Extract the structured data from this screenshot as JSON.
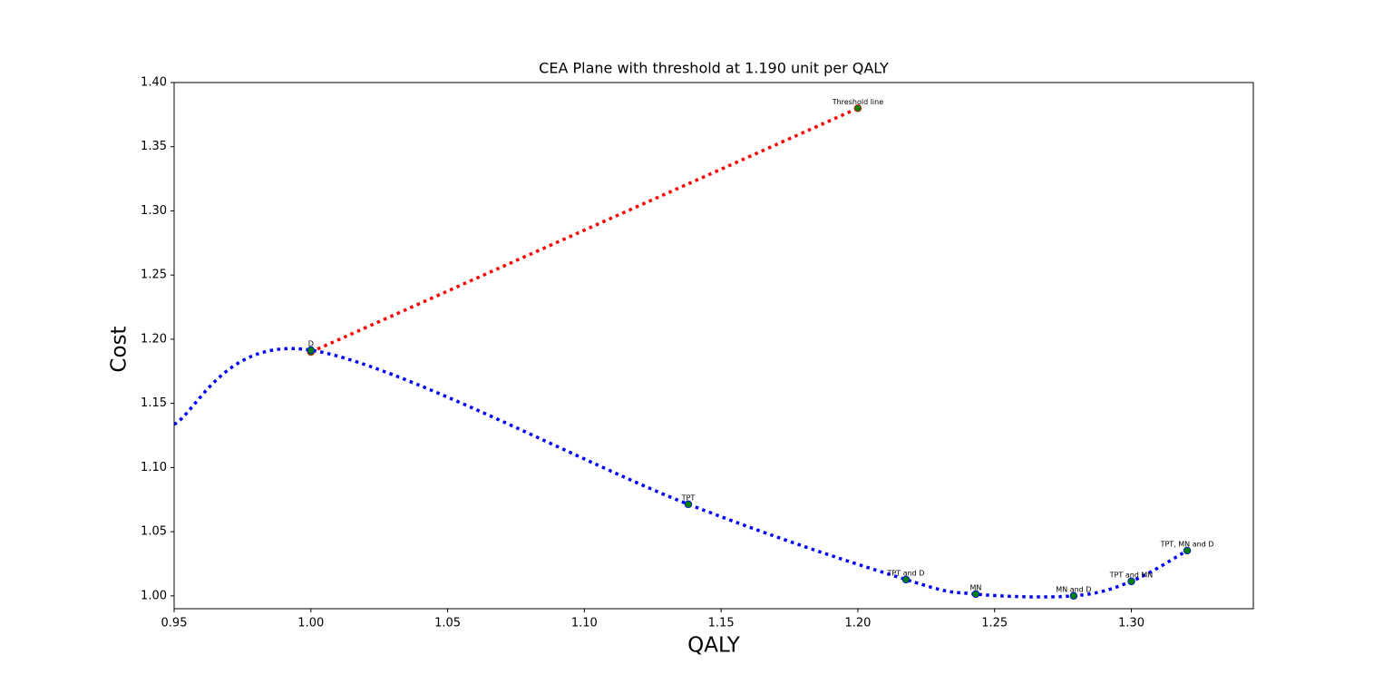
{
  "chart_data": {
    "type": "line",
    "title": "CEA Plane with threshold at 1.190 unit per QALY",
    "xlabel": "QALY",
    "ylabel": "Cost",
    "xlim": [
      0.95,
      1.3446
    ],
    "ylim": [
      0.99,
      1.4
    ],
    "xticks": [
      0.95,
      {
        "value": 1.0,
        "label": "1.00"
      },
      1.05,
      {
        "value": 1.1,
        "label": "1.10"
      },
      1.15,
      {
        "value": 1.2,
        "label": "1.20"
      },
      1.25,
      {
        "value": 1.3,
        "label": "1.30"
      }
    ],
    "yticks": [
      {
        "value": 1.0,
        "label": "1.00"
      },
      1.05,
      {
        "value": 1.1,
        "label": "1.10"
      },
      1.15,
      {
        "value": 1.2,
        "label": "1.20"
      },
      1.25,
      {
        "value": 1.3,
        "label": "1.30"
      },
      1.35,
      {
        "value": 1.4,
        "label": "1.40"
      }
    ],
    "marker_color": "#008000",
    "series": [
      {
        "color": "#ff0000",
        "x": [
          1.0,
          1.2
        ],
        "values": [
          1.19,
          1.38
        ],
        "labels": [
          null,
          "Threshold line"
        ]
      },
      {
        "color": "#0000ff",
        "x": [
          0.95,
          1.0,
          1.138,
          1.2176,
          1.2431,
          1.2789,
          1.3,
          1.3204
        ],
        "values": [
          1.1336,
          1.1915,
          1.0714,
          1.0127,
          1.0014,
          1.0,
          1.0113,
          1.0353
        ],
        "labels": [
          null,
          "D",
          "TPT",
          "TPT and D",
          "MN",
          "MN and D",
          "TPT and MN",
          "TPT, MN and D"
        ]
      }
    ]
  }
}
